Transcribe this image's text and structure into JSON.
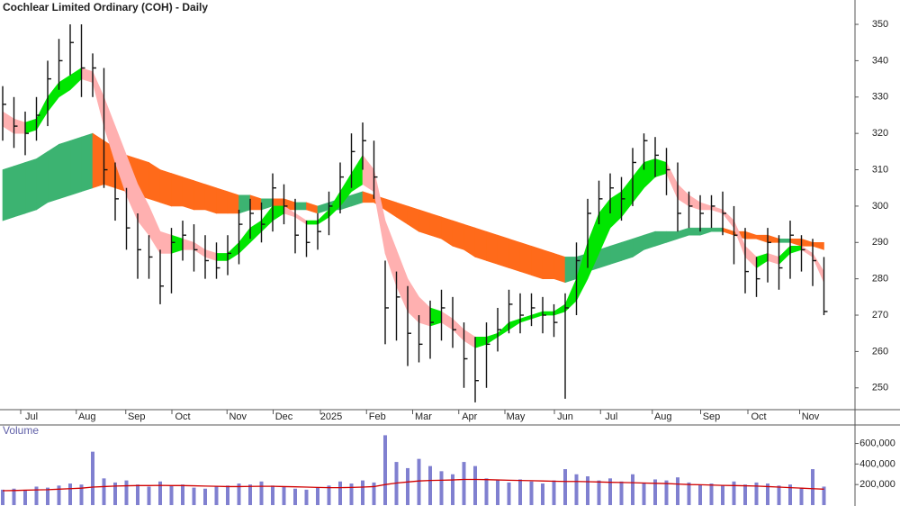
{
  "chart_data": [
    {
      "type": "hlc",
      "title": "Cochlear Limited Ordinary (COH) - Daily",
      "bar_color": "#111111",
      "xlim": [
        -0.24,
        75.76
      ],
      "xticks": [
        {
          "value": 2.56,
          "label": "Jul"
        },
        {
          "value": 7.5,
          "label": "Aug"
        },
        {
          "value": 11.9,
          "label": "Sep"
        },
        {
          "value": 16,
          "label": "Oct"
        },
        {
          "value": 20.9,
          "label": "Nov"
        },
        {
          "value": 25,
          "label": "Dec"
        },
        {
          "value": 29.2,
          "label": "2025"
        },
        {
          "value": 33.3,
          "label": "Feb"
        },
        {
          "value": 37.4,
          "label": "Mar"
        },
        {
          "value": 41.5,
          "label": "Apr"
        },
        {
          "value": 45.6,
          "label": "May"
        },
        {
          "value": 50,
          "label": "Jun"
        },
        {
          "value": 54.1,
          "label": "Jul"
        },
        {
          "value": 58.7,
          "label": "Aug"
        },
        {
          "value": 63,
          "label": "Sep"
        },
        {
          "value": 67.2,
          "label": "Oct"
        },
        {
          "value": 71.8,
          "label": "Nov"
        }
      ],
      "ylim": [
        244,
        356.7
      ],
      "yticks": [
        250,
        260,
        270,
        280,
        290,
        300,
        310,
        320,
        330,
        340,
        350
      ],
      "high": [
        333,
        330,
        326,
        330,
        340,
        346,
        350,
        350,
        342,
        338,
        312,
        305,
        298,
        292,
        288,
        294,
        296,
        295,
        292,
        290,
        292,
        299,
        302,
        301,
        309,
        306,
        302,
        296,
        298,
        304,
        312,
        320,
        323,
        318,
        285,
        282,
        278,
        270,
        274,
        277,
        275,
        268,
        264,
        268,
        272,
        277,
        276,
        276,
        275,
        273,
        276,
        290,
        302,
        307,
        309,
        308,
        316,
        320,
        319,
        316,
        312,
        304,
        303,
        303,
        304,
        300,
        294,
        286,
        294,
        292,
        296,
        292,
        291,
        286
      ],
      "low": [
        318,
        316,
        314,
        318,
        322,
        332,
        336,
        330,
        330,
        305,
        296,
        288,
        280,
        280,
        273,
        276,
        285,
        282,
        280,
        280,
        281,
        284,
        291,
        290,
        293,
        295,
        287,
        286,
        288,
        292,
        298,
        305,
        310,
        302,
        262,
        263,
        256,
        257,
        258,
        263,
        261,
        250,
        246,
        250,
        260,
        265,
        265,
        267,
        265,
        264,
        247,
        270,
        283,
        295,
        298,
        296,
        300,
        310,
        308,
        303,
        293,
        294,
        293,
        294,
        292,
        284,
        276,
        275,
        279,
        277,
        280,
        282,
        278,
        270
      ],
      "close": [
        328,
        322,
        320,
        325,
        335,
        340,
        345,
        338,
        338,
        310,
        302,
        294,
        288,
        286,
        278,
        290,
        292,
        288,
        285,
        283,
        287,
        295,
        298,
        295,
        305,
        300,
        292,
        290,
        293,
        300,
        308,
        315,
        318,
        308,
        272,
        275,
        265,
        262,
        268,
        272,
        266,
        258,
        252,
        262,
        266,
        273,
        270,
        272,
        270,
        268,
        272,
        285,
        298,
        302,
        305,
        302,
        312,
        318,
        314,
        310,
        298,
        300,
        298,
        300,
        298,
        292,
        282,
        280,
        290,
        283,
        292,
        288,
        285,
        271
      ],
      "bands": [
        {
          "rising_color": "#3cb371",
          "falling_color": "#ff6a1a",
          "top": [
            310,
            311,
            312,
            313,
            315,
            317,
            318,
            319,
            320,
            318,
            316,
            314,
            313,
            312,
            310,
            309,
            308,
            307,
            306,
            305,
            304,
            303,
            303,
            302,
            302,
            302,
            301,
            301,
            300,
            301,
            302,
            303,
            304,
            303,
            302,
            301,
            300,
            299,
            298,
            297,
            296,
            295,
            294,
            293,
            292,
            291,
            290,
            289,
            288,
            287,
            286,
            286,
            287,
            288,
            289,
            290,
            291,
            292,
            293,
            293,
            293,
            294,
            294,
            294,
            294,
            293,
            293,
            292,
            292,
            291,
            291,
            291,
            290,
            290
          ],
          "bottom": [
            296,
            297,
            298,
            299,
            301,
            302,
            303,
            304,
            305,
            306,
            305,
            304,
            303,
            302,
            301,
            300,
            300,
            299,
            299,
            298,
            298,
            298,
            299,
            299,
            300,
            299,
            299,
            299,
            298,
            299,
            299,
            300,
            301,
            301,
            299,
            297,
            295,
            293,
            292,
            291,
            289,
            288,
            286,
            285,
            284,
            283,
            282,
            281,
            280,
            280,
            279,
            280,
            282,
            283,
            284,
            285,
            286,
            288,
            289,
            290,
            291,
            292,
            292,
            293,
            293,
            292,
            291,
            291,
            290,
            290,
            290,
            289,
            289,
            288
          ]
        },
        {
          "rising_color": "#00e600",
          "falling_color": "#ffb0b0",
          "top": [
            326,
            324,
            323,
            324,
            330,
            334,
            336,
            338,
            337,
            330,
            322,
            314,
            306,
            300,
            293,
            292,
            291,
            290,
            288,
            287,
            287,
            290,
            294,
            296,
            300,
            300,
            298,
            296,
            296,
            299,
            304,
            309,
            314,
            310,
            296,
            288,
            280,
            275,
            272,
            271,
            269,
            266,
            264,
            264,
            265,
            268,
            269,
            270,
            271,
            271,
            273,
            280,
            290,
            298,
            302,
            304,
            308,
            312,
            313,
            312,
            306,
            303,
            301,
            300,
            299,
            296,
            289,
            286,
            287,
            286,
            289,
            289,
            287,
            282
          ],
          "bottom": [
            322,
            320,
            320,
            321,
            326,
            330,
            332,
            335,
            334,
            322,
            312,
            303,
            296,
            292,
            287,
            287,
            288,
            288,
            286,
            285,
            285,
            287,
            290,
            293,
            296,
            298,
            297,
            295,
            295,
            297,
            300,
            304,
            306,
            304,
            287,
            278,
            271,
            268,
            267,
            268,
            266,
            263,
            261,
            262,
            264,
            266,
            268,
            269,
            270,
            270,
            271,
            274,
            280,
            287,
            294,
            297,
            301,
            305,
            308,
            309,
            302,
            300,
            299,
            299,
            298,
            294,
            286,
            283,
            285,
            284,
            287,
            288,
            286,
            279
          ]
        }
      ]
    },
    {
      "type": "bar",
      "title": "Volume",
      "color": "#8080d0",
      "ma_color": "#d00000",
      "ylim": [
        0,
        780000
      ],
      "yticks": [
        {
          "value": 200000,
          "label": "200,000"
        },
        {
          "value": 400000,
          "label": "400,000"
        },
        {
          "value": 600000,
          "label": "600,000"
        }
      ],
      "values": [
        150000,
        160000,
        140000,
        180000,
        170000,
        190000,
        210000,
        200000,
        520000,
        260000,
        220000,
        240000,
        200000,
        180000,
        230000,
        190000,
        200000,
        170000,
        160000,
        180000,
        190000,
        210000,
        200000,
        230000,
        190000,
        180000,
        160000,
        150000,
        170000,
        190000,
        230000,
        210000,
        240000,
        220000,
        680000,
        420000,
        360000,
        450000,
        380000,
        330000,
        300000,
        420000,
        380000,
        260000,
        240000,
        220000,
        250000,
        230000,
        210000,
        240000,
        350000,
        300000,
        280000,
        240000,
        260000,
        230000,
        300000,
        220000,
        250000,
        240000,
        270000,
        220000,
        200000,
        210000,
        190000,
        230000,
        200000,
        220000,
        210000,
        190000,
        200000,
        170000,
        350000,
        180000
      ],
      "ma": [
        140000,
        142000,
        145000,
        148000,
        150000,
        155000,
        160000,
        165000,
        175000,
        180000,
        185000,
        188000,
        190000,
        190000,
        192000,
        190000,
        190000,
        188000,
        185000,
        183000,
        180000,
        180000,
        182000,
        183000,
        183000,
        180000,
        178000,
        175000,
        172000,
        170000,
        170000,
        172000,
        175000,
        180000,
        200000,
        215000,
        225000,
        235000,
        240000,
        242000,
        245000,
        250000,
        250000,
        248000,
        245000,
        242000,
        240000,
        238000,
        235000,
        232000,
        230000,
        230000,
        228000,
        225000,
        222000,
        220000,
        218000,
        215000,
        212000,
        210000,
        205000,
        200000,
        198000,
        195000,
        192000,
        190000,
        188000,
        185000,
        180000,
        175000,
        170000,
        165000,
        160000,
        155000
      ]
    }
  ]
}
